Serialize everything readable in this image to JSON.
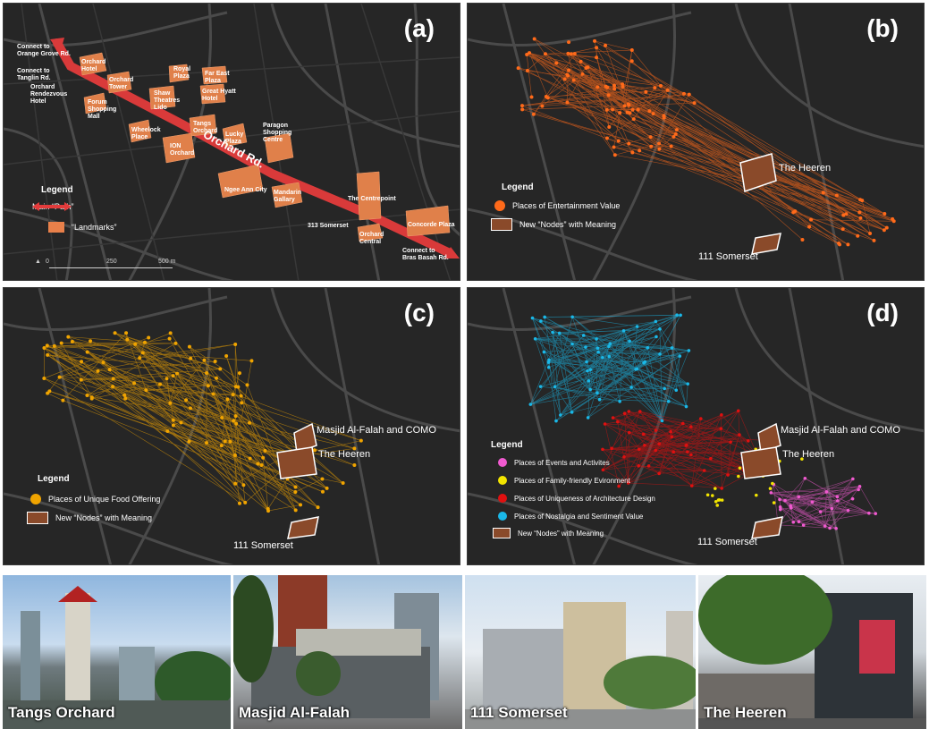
{
  "panels": {
    "a": {
      "label": "(a)",
      "roads": [
        "Connect to\nOrange Grove Rd.",
        "Connect to\nTanglin Rd.",
        "Connect to\nBras Basah Rd."
      ],
      "landmarks": [
        "Orchard\nHotel",
        "Orchard\nTower",
        "Royal\nPlaza",
        "Far East\nPlaza",
        "Great Hyatt\nHotel",
        "Orchard\nRendezvous\nHotel",
        "Forum\nShopping\nMall",
        "Shaw\nTheatres\nLido",
        "Tangs\nOrchard",
        "Lucky\nPlaza",
        "Wheelock\nPlace",
        "ION\nOrchard",
        "Paragon\nShopping\nCentre",
        "Ngee Ann City",
        "Mandarin\nGallary",
        "The Centrepoint",
        "313 Somerset",
        "Orchard\nCentral",
        "Concorde Plaza"
      ],
      "street": "Orchard Rd.",
      "legend_title": "Legend",
      "legend_items": [
        "Main “Path”",
        "“Landmarks”"
      ],
      "scale": [
        "0",
        "250",
        "500 m"
      ]
    },
    "b": {
      "label": "(b)",
      "legend_title": "Legend",
      "legend_items": [
        "Places of Entertainment Value",
        "New “Nodes” with Meaning"
      ],
      "nodes": [
        "The Heeren",
        "111 Somerset"
      ]
    },
    "c": {
      "label": "(c)",
      "legend_title": "Legend",
      "legend_items": [
        "Places of Unique Food Offering",
        "New “Nodes” with Meaning"
      ],
      "nodes": [
        "Masjid Al-Falah and COMO",
        "The Heeren",
        "111 Somerset"
      ]
    },
    "d": {
      "label": "(d)",
      "legend_title": "Legend",
      "legend_items": [
        "Places of Events and Activites",
        "Places of Family-friendly Evironment",
        "Places of Uniqueness of Architecture Design",
        "Places of Nostalgia and Sentiment Value",
        "New “Nodes” with Meaning"
      ],
      "nodes": [
        "Masjid Al-Falah and COMO",
        "The Heeren",
        "111 Somerset"
      ]
    }
  },
  "colors": {
    "path": "#e23b3b",
    "landmark": "#e8804a",
    "entertainment": "#ff6a1a",
    "food": "#f0a400",
    "events": "#f05ad0",
    "family": "#f2e400",
    "architecture": "#e01010",
    "nostalgia": "#1ab8e8",
    "node_fill": "#8a4a2a"
  },
  "photos": [
    "Tangs Orchard",
    "Masjid Al-Falah",
    "111 Somerset",
    "The Heeren"
  ]
}
